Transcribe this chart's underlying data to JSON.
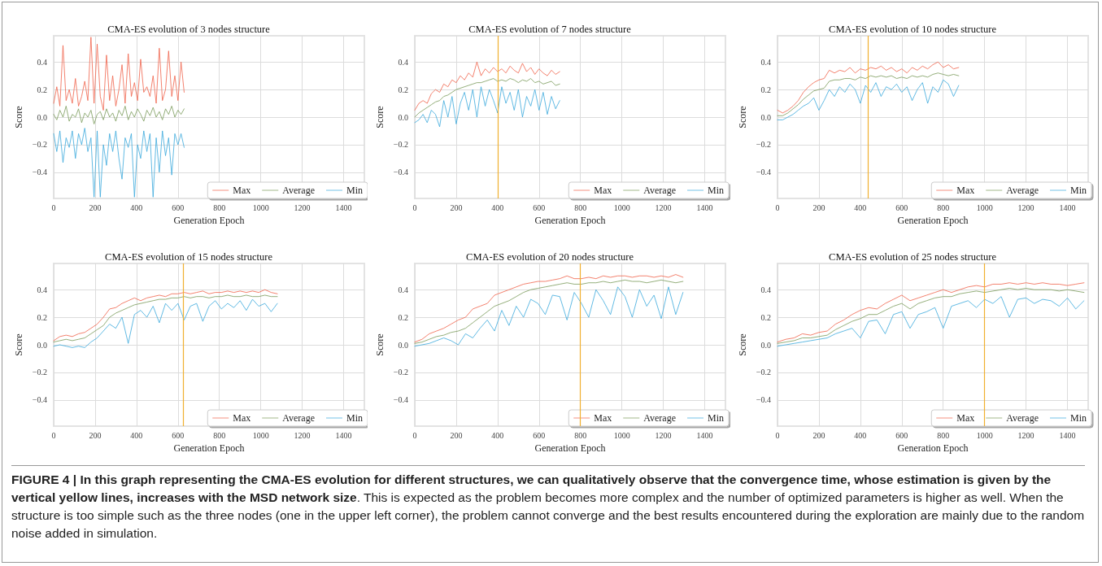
{
  "chart_data": [
    {
      "type": "line",
      "title": "CMA-ES evolution of 3 nodes structure",
      "xlabel": "Generation Epoch",
      "ylabel": "Score",
      "xlim": [
        0,
        1500
      ],
      "xticks": [
        0,
        200,
        400,
        600,
        800,
        1000,
        1200,
        1400
      ],
      "ylim": [
        -0.59,
        0.59
      ],
      "yticks": [
        {
          "value": -0.4,
          "label": "−0.4"
        },
        {
          "value": -0.2,
          "label": "−0.2"
        },
        {
          "value": 0,
          "label": "0.0"
        },
        {
          "value": 0.2,
          "label": "0.2"
        },
        {
          "value": 0.4,
          "label": "0.4"
        }
      ],
      "grid": true,
      "legend": "bottom right",
      "marker": "none",
      "line_style": "solid",
      "x": [
        0,
        15,
        30,
        45,
        60,
        75,
        90,
        105,
        120,
        135,
        150,
        165,
        180,
        195,
        210,
        225,
        240,
        255,
        270,
        285,
        300,
        315,
        330,
        345,
        360,
        375,
        390,
        405,
        420,
        435,
        450,
        465,
        480,
        495,
        510,
        525,
        540,
        555,
        570,
        585,
        600,
        615,
        630
      ],
      "series": [
        {
          "name": "Max",
          "color": "#f0624a",
          "values": [
            0.1,
            0.22,
            0.08,
            0.52,
            0.12,
            0.2,
            0.1,
            0.28,
            0.08,
            0.15,
            0.26,
            0.12,
            0.58,
            0.1,
            0.53,
            0.15,
            0.05,
            0.45,
            0.12,
            0.3,
            0.08,
            0.2,
            0.38,
            0.1,
            0.46,
            0.15,
            0.25,
            0.12,
            0.42,
            0.18,
            0.22,
            0.15,
            0.3,
            0.1,
            0.5,
            0.12,
            0.2,
            0.48,
            0.15,
            0.3,
            0.12,
            0.4,
            0.18
          ]
        },
        {
          "name": "Average",
          "color": "#7a9a5a",
          "values": [
            0.02,
            -0.02,
            0.05,
            0.0,
            0.08,
            -0.03,
            0.02,
            0.0,
            0.06,
            -0.04,
            0.03,
            0.0,
            0.05,
            -0.05,
            0.02,
            0.04,
            -0.02,
            0.06,
            0.0,
            0.03,
            -0.03,
            0.05,
            0.01,
            0.08,
            -0.02,
            0.04,
            0.0,
            0.06,
            0.02,
            -0.03,
            0.05,
            0.01,
            0.07,
            0.0,
            0.04,
            -0.02,
            0.06,
            0.02,
            0.08,
            0.0,
            0.05,
            0.02,
            0.06
          ]
        },
        {
          "name": "Min",
          "color": "#3aa8dc",
          "values": [
            -0.12,
            -0.25,
            -0.1,
            -0.33,
            -0.15,
            -0.22,
            -0.1,
            -0.3,
            -0.12,
            -0.2,
            -0.08,
            -0.25,
            -0.15,
            -0.58,
            -0.1,
            -0.58,
            -0.2,
            -0.35,
            -0.12,
            -0.25,
            -0.1,
            -0.3,
            -0.45,
            -0.15,
            -0.22,
            -0.12,
            -0.58,
            -0.2,
            -0.3,
            -0.1,
            -0.25,
            -0.12,
            -0.58,
            -0.15,
            -0.4,
            -0.1,
            -0.28,
            -0.15,
            -0.42,
            -0.12,
            -0.2,
            -0.12,
            -0.22
          ]
        }
      ]
    },
    {
      "type": "line",
      "title": "CMA-ES evolution of 7 nodes structure",
      "xlabel": "Generation Epoch",
      "ylabel": "Score",
      "xlim": [
        0,
        1500
      ],
      "xticks": [
        0,
        200,
        400,
        600,
        800,
        1000,
        1200,
        1400
      ],
      "ylim": [
        -0.59,
        0.59
      ],
      "yticks": [
        {
          "value": -0.4,
          "label": "−0.4"
        },
        {
          "value": -0.2,
          "label": "−0.2"
        },
        {
          "value": 0,
          "label": "0.0"
        },
        {
          "value": 0.2,
          "label": "0.2"
        },
        {
          "value": 0.4,
          "label": "0.4"
        }
      ],
      "grid": true,
      "legend": "bottom right",
      "marker": "none",
      "line_style": "solid",
      "ref_lines": [
        {
          "axis": "x",
          "value": 400,
          "color": "#f0b030"
        }
      ],
      "x": [
        0,
        20,
        40,
        60,
        80,
        100,
        120,
        140,
        160,
        180,
        200,
        220,
        240,
        260,
        280,
        300,
        320,
        340,
        360,
        380,
        400,
        420,
        440,
        460,
        480,
        500,
        520,
        540,
        560,
        580,
        600,
        620,
        640,
        660,
        680,
        700
      ],
      "series": [
        {
          "name": "Max",
          "color": "#f0624a",
          "values": [
            0.05,
            0.1,
            0.12,
            0.1,
            0.17,
            0.2,
            0.18,
            0.24,
            0.22,
            0.27,
            0.25,
            0.3,
            0.27,
            0.32,
            0.29,
            0.4,
            0.3,
            0.35,
            0.32,
            0.36,
            0.33,
            0.35,
            0.32,
            0.37,
            0.34,
            0.32,
            0.39,
            0.33,
            0.36,
            0.31,
            0.35,
            0.32,
            0.3,
            0.34,
            0.31,
            0.33
          ]
        },
        {
          "name": "Average",
          "color": "#7a9a5a",
          "values": [
            0.0,
            0.03,
            0.05,
            0.07,
            0.09,
            0.11,
            0.12,
            0.15,
            0.16,
            0.18,
            0.2,
            0.21,
            0.22,
            0.23,
            0.24,
            0.25,
            0.25,
            0.26,
            0.27,
            0.28,
            0.26,
            0.27,
            0.26,
            0.28,
            0.27,
            0.25,
            0.27,
            0.26,
            0.28,
            0.25,
            0.26,
            0.24,
            0.25,
            0.26,
            0.23,
            0.24
          ]
        },
        {
          "name": "Min",
          "color": "#3aa8dc",
          "values": [
            -0.04,
            -0.02,
            0.02,
            -0.04,
            0.05,
            0.02,
            -0.07,
            0.12,
            0.0,
            0.15,
            -0.05,
            0.1,
            0.18,
            0.05,
            0.2,
            0.0,
            0.22,
            0.08,
            0.2,
            0.12,
            0.03,
            0.22,
            0.1,
            0.18,
            0.05,
            0.2,
            0.0,
            0.15,
            0.08,
            0.2,
            0.05,
            0.18,
            0.02,
            0.15,
            0.06,
            0.12
          ]
        }
      ]
    },
    {
      "type": "line",
      "title": "CMA-ES evolution of 10 nodes structure",
      "xlabel": "Generation Epoch",
      "ylabel": "Score",
      "xlim": [
        0,
        1500
      ],
      "xticks": [
        0,
        200,
        400,
        600,
        800,
        1000,
        1200,
        1400
      ],
      "ylim": [
        -0.59,
        0.59
      ],
      "yticks": [
        {
          "value": -0.4,
          "label": "−0.4"
        },
        {
          "value": -0.2,
          "label": "−0.2"
        },
        {
          "value": 0,
          "label": "0.0"
        },
        {
          "value": 0.2,
          "label": "0.2"
        },
        {
          "value": 0.4,
          "label": "0.4"
        }
      ],
      "grid": true,
      "legend": "bottom right",
      "marker": "none",
      "line_style": "solid",
      "ref_lines": [
        {
          "axis": "x",
          "value": 438,
          "color": "#f0b030"
        }
      ],
      "x": [
        0,
        25,
        50,
        75,
        100,
        125,
        150,
        175,
        200,
        225,
        250,
        275,
        300,
        325,
        350,
        375,
        400,
        425,
        450,
        475,
        500,
        525,
        550,
        575,
        600,
        625,
        650,
        675,
        700,
        725,
        750,
        775,
        800,
        825,
        850,
        875
      ],
      "series": [
        {
          "name": "Max",
          "color": "#f0624a",
          "values": [
            0.05,
            0.03,
            0.05,
            0.08,
            0.12,
            0.18,
            0.22,
            0.25,
            0.27,
            0.28,
            0.34,
            0.32,
            0.34,
            0.33,
            0.36,
            0.32,
            0.35,
            0.34,
            0.36,
            0.35,
            0.37,
            0.34,
            0.36,
            0.33,
            0.35,
            0.32,
            0.36,
            0.34,
            0.37,
            0.35,
            0.38,
            0.4,
            0.36,
            0.38,
            0.35,
            0.36
          ]
        },
        {
          "name": "Average",
          "color": "#7a9a5a",
          "values": [
            0.01,
            0.01,
            0.03,
            0.06,
            0.09,
            0.13,
            0.16,
            0.19,
            0.2,
            0.21,
            0.26,
            0.27,
            0.27,
            0.28,
            0.28,
            0.27,
            0.29,
            0.28,
            0.3,
            0.29,
            0.3,
            0.29,
            0.3,
            0.28,
            0.29,
            0.28,
            0.3,
            0.29,
            0.3,
            0.29,
            0.31,
            0.32,
            0.31,
            0.3,
            0.31,
            0.3
          ]
        },
        {
          "name": "Min",
          "color": "#3aa8dc",
          "values": [
            -0.02,
            -0.02,
            0.0,
            0.02,
            0.05,
            0.08,
            0.1,
            0.14,
            0.05,
            0.12,
            0.2,
            0.15,
            0.22,
            0.18,
            0.24,
            0.2,
            0.1,
            0.23,
            0.18,
            0.25,
            0.15,
            0.22,
            0.2,
            0.24,
            0.18,
            0.22,
            0.12,
            0.2,
            0.25,
            0.1,
            0.22,
            0.18,
            0.27,
            0.24,
            0.15,
            0.23
          ]
        }
      ]
    },
    {
      "type": "line",
      "title": "CMA-ES evolution of 15 nodes structure",
      "xlabel": "Generation Epoch",
      "ylabel": "Score",
      "xlim": [
        0,
        1500
      ],
      "xticks": [
        0,
        200,
        400,
        600,
        800,
        1000,
        1200,
        1400
      ],
      "ylim": [
        -0.59,
        0.59
      ],
      "yticks": [
        {
          "value": -0.4,
          "label": "−0.4"
        },
        {
          "value": -0.2,
          "label": "−0.2"
        },
        {
          "value": 0,
          "label": "0.0"
        },
        {
          "value": 0.2,
          "label": "0.2"
        },
        {
          "value": 0.4,
          "label": "0.4"
        }
      ],
      "grid": true,
      "legend": "bottom right",
      "marker": "none",
      "line_style": "solid",
      "ref_lines": [
        {
          "axis": "x",
          "value": 625,
          "color": "#f0b030"
        }
      ],
      "x": [
        0,
        30,
        60,
        90,
        120,
        150,
        180,
        210,
        240,
        270,
        300,
        330,
        360,
        390,
        420,
        450,
        480,
        510,
        540,
        570,
        600,
        630,
        660,
        690,
        720,
        750,
        780,
        810,
        840,
        870,
        900,
        930,
        960,
        990,
        1020,
        1050,
        1080
      ],
      "series": [
        {
          "name": "Max",
          "color": "#f0624a",
          "values": [
            0.03,
            0.06,
            0.07,
            0.06,
            0.08,
            0.09,
            0.12,
            0.15,
            0.2,
            0.26,
            0.27,
            0.3,
            0.32,
            0.34,
            0.32,
            0.34,
            0.35,
            0.36,
            0.35,
            0.37,
            0.37,
            0.38,
            0.37,
            0.38,
            0.39,
            0.37,
            0.38,
            0.38,
            0.39,
            0.38,
            0.39,
            0.38,
            0.39,
            0.38,
            0.4,
            0.38,
            0.37
          ]
        },
        {
          "name": "Average",
          "color": "#7a9a5a",
          "values": [
            0.02,
            0.03,
            0.04,
            0.03,
            0.04,
            0.05,
            0.08,
            0.11,
            0.14,
            0.2,
            0.23,
            0.25,
            0.27,
            0.29,
            0.3,
            0.31,
            0.32,
            0.33,
            0.33,
            0.34,
            0.34,
            0.35,
            0.34,
            0.35,
            0.35,
            0.34,
            0.35,
            0.35,
            0.36,
            0.35,
            0.35,
            0.36,
            0.35,
            0.35,
            0.36,
            0.35,
            0.35
          ]
        },
        {
          "name": "Min",
          "color": "#3aa8dc",
          "values": [
            -0.01,
            0.0,
            -0.01,
            -0.02,
            -0.01,
            -0.02,
            0.02,
            0.05,
            0.1,
            0.15,
            0.12,
            0.2,
            0.01,
            0.22,
            0.25,
            0.2,
            0.28,
            0.16,
            0.3,
            0.25,
            0.3,
            0.18,
            0.28,
            0.3,
            0.17,
            0.28,
            0.32,
            0.26,
            0.3,
            0.27,
            0.32,
            0.25,
            0.33,
            0.28,
            0.3,
            0.24,
            0.3
          ]
        }
      ]
    },
    {
      "type": "line",
      "title": "CMA-ES evolution of 20 nodes structure",
      "xlabel": "Generation Epoch",
      "ylabel": "Score",
      "xlim": [
        0,
        1500
      ],
      "xticks": [
        0,
        200,
        400,
        600,
        800,
        1000,
        1200,
        1400
      ],
      "ylim": [
        -0.59,
        0.59
      ],
      "yticks": [
        {
          "value": -0.4,
          "label": "−0.4"
        },
        {
          "value": -0.2,
          "label": "−0.2"
        },
        {
          "value": 0,
          "label": "0.0"
        },
        {
          "value": 0.2,
          "label": "0.2"
        },
        {
          "value": 0.4,
          "label": "0.4"
        }
      ],
      "grid": true,
      "legend": "bottom right",
      "marker": "none",
      "line_style": "solid",
      "ref_lines": [
        {
          "axis": "x",
          "value": 800,
          "color": "#f0b030"
        }
      ],
      "x": [
        0,
        35,
        70,
        105,
        140,
        175,
        210,
        245,
        280,
        315,
        350,
        385,
        420,
        455,
        490,
        525,
        560,
        595,
        630,
        665,
        700,
        735,
        770,
        805,
        840,
        875,
        910,
        945,
        980,
        1015,
        1050,
        1085,
        1120,
        1155,
        1190,
        1225,
        1260,
        1295
      ],
      "series": [
        {
          "name": "Max",
          "color": "#f0624a",
          "values": [
            0.02,
            0.04,
            0.08,
            0.1,
            0.12,
            0.15,
            0.18,
            0.2,
            0.26,
            0.28,
            0.3,
            0.36,
            0.38,
            0.4,
            0.42,
            0.44,
            0.45,
            0.46,
            0.46,
            0.47,
            0.48,
            0.5,
            0.48,
            0.48,
            0.49,
            0.48,
            0.5,
            0.49,
            0.5,
            0.5,
            0.49,
            0.5,
            0.5,
            0.49,
            0.5,
            0.49,
            0.51,
            0.49
          ]
        },
        {
          "name": "Average",
          "color": "#7a9a5a",
          "values": [
            0.01,
            0.02,
            0.04,
            0.06,
            0.07,
            0.09,
            0.1,
            0.12,
            0.16,
            0.2,
            0.24,
            0.28,
            0.3,
            0.32,
            0.35,
            0.38,
            0.4,
            0.41,
            0.42,
            0.43,
            0.44,
            0.45,
            0.44,
            0.44,
            0.45,
            0.45,
            0.46,
            0.45,
            0.46,
            0.47,
            0.46,
            0.46,
            0.45,
            0.46,
            0.47,
            0.46,
            0.45,
            0.46
          ]
        },
        {
          "name": "Min",
          "color": "#3aa8dc",
          "values": [
            -0.01,
            0.0,
            0.01,
            0.03,
            0.05,
            0.03,
            0.0,
            0.08,
            0.05,
            0.12,
            0.18,
            0.1,
            0.25,
            0.14,
            0.28,
            0.2,
            0.33,
            0.3,
            0.22,
            0.36,
            0.35,
            0.18,
            0.38,
            0.3,
            0.2,
            0.4,
            0.32,
            0.22,
            0.42,
            0.35,
            0.2,
            0.4,
            0.28,
            0.36,
            0.19,
            0.42,
            0.22,
            0.38
          ]
        }
      ]
    },
    {
      "type": "line",
      "title": "CMA-ES evolution of 25 nodes structure",
      "xlabel": "Generation Epoch",
      "ylabel": "Score",
      "xlim": [
        0,
        1500
      ],
      "xticks": [
        0,
        200,
        400,
        600,
        800,
        1000,
        1200,
        1400
      ],
      "ylim": [
        -0.59,
        0.59
      ],
      "yticks": [
        {
          "value": -0.4,
          "label": "−0.4"
        },
        {
          "value": -0.2,
          "label": "−0.2"
        },
        {
          "value": 0,
          "label": "0.0"
        },
        {
          "value": 0.2,
          "label": "0.2"
        },
        {
          "value": 0.4,
          "label": "0.4"
        }
      ],
      "grid": true,
      "legend": "bottom right",
      "marker": "none",
      "line_style": "solid",
      "ref_lines": [
        {
          "axis": "x",
          "value": 1000,
          "color": "#f0b030"
        }
      ],
      "annotations": [
        "FIGURE 4 | In this graph representing the CMA-ES evolution for different structures, we can qualitatively observe that the convergence time, whose estimation is given by the vertical yellow lines, increases with the MSD network size",
        ". This is expected as the problem becomes more complex and the number of optimized parameters is higher as well. When the structure is too simple such as the three nodes (one in the upper left corner), the problem cannot converge and the best results encountered during the exploration are mainly due to the random noise added in simulation."
      ],
      "x": [
        0,
        40,
        80,
        120,
        160,
        200,
        240,
        280,
        320,
        360,
        400,
        440,
        480,
        520,
        560,
        600,
        640,
        680,
        720,
        760,
        800,
        840,
        880,
        920,
        960,
        1000,
        1040,
        1080,
        1120,
        1160,
        1200,
        1240,
        1280,
        1320,
        1360,
        1400,
        1440,
        1480
      ],
      "series": [
        {
          "name": "Max",
          "color": "#f0624a",
          "values": [
            0.02,
            0.04,
            0.05,
            0.08,
            0.07,
            0.09,
            0.1,
            0.15,
            0.18,
            0.22,
            0.25,
            0.27,
            0.26,
            0.3,
            0.33,
            0.36,
            0.32,
            0.34,
            0.36,
            0.38,
            0.4,
            0.38,
            0.4,
            0.42,
            0.43,
            0.42,
            0.44,
            0.44,
            0.45,
            0.44,
            0.45,
            0.44,
            0.45,
            0.44,
            0.44,
            0.43,
            0.44,
            0.45
          ]
        },
        {
          "name": "Average",
          "color": "#7a9a5a",
          "values": [
            0.01,
            0.02,
            0.03,
            0.05,
            0.05,
            0.06,
            0.07,
            0.11,
            0.14,
            0.17,
            0.19,
            0.22,
            0.22,
            0.25,
            0.28,
            0.3,
            0.26,
            0.3,
            0.32,
            0.34,
            0.35,
            0.35,
            0.37,
            0.38,
            0.39,
            0.38,
            0.39,
            0.4,
            0.41,
            0.4,
            0.41,
            0.4,
            0.4,
            0.4,
            0.39,
            0.4,
            0.39,
            0.38
          ]
        },
        {
          "name": "Min",
          "color": "#3aa8dc",
          "values": [
            -0.01,
            0.0,
            0.01,
            0.02,
            0.03,
            0.04,
            0.05,
            0.08,
            0.1,
            0.12,
            0.05,
            0.17,
            0.18,
            0.08,
            0.22,
            0.24,
            0.12,
            0.22,
            0.24,
            0.27,
            0.12,
            0.28,
            0.3,
            0.32,
            0.27,
            0.33,
            0.3,
            0.35,
            0.2,
            0.33,
            0.34,
            0.3,
            0.33,
            0.32,
            0.28,
            0.34,
            0.26,
            0.32
          ]
        }
      ]
    }
  ]
}
